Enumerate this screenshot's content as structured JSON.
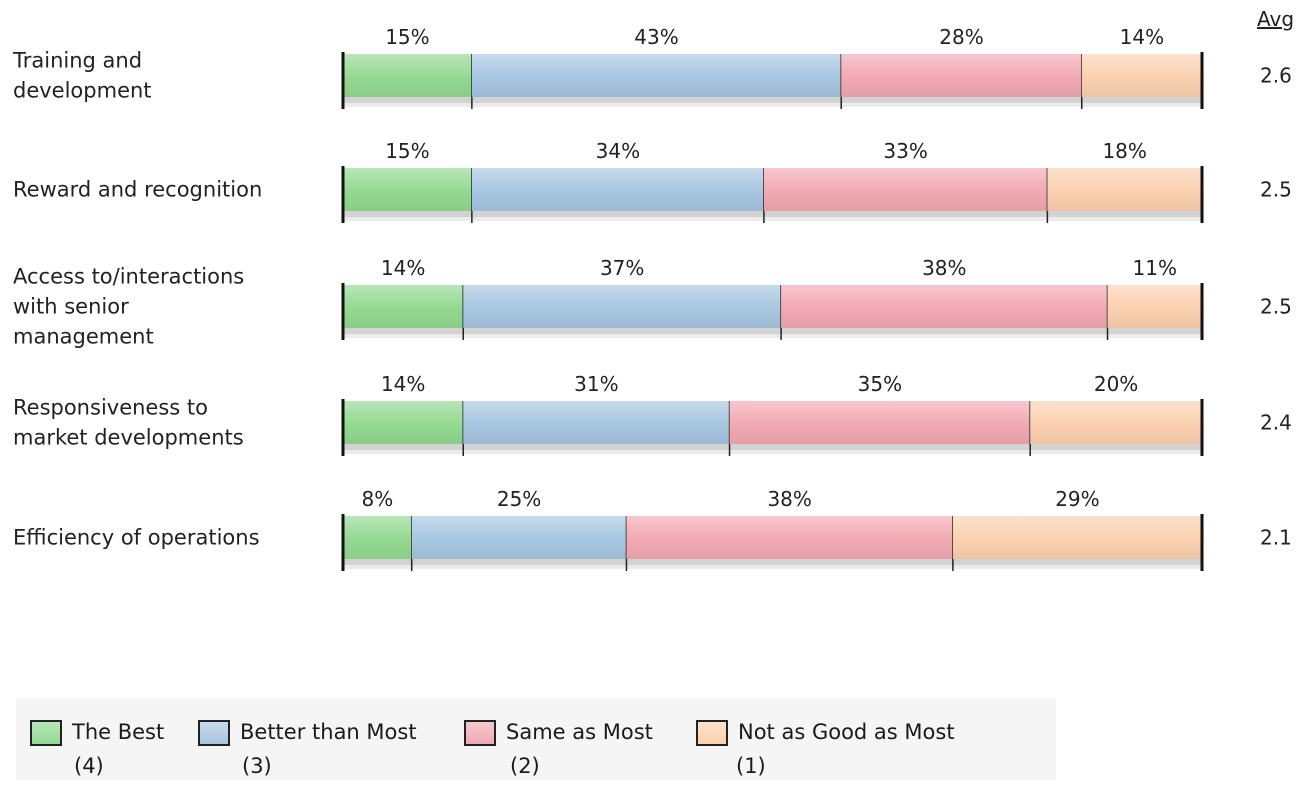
{
  "chart_data": {
    "type": "bar",
    "stacked": true,
    "orientation": "horizontal",
    "percent_suffix": "%",
    "avg_header": "Avg",
    "categories": [
      [
        "Training and",
        "development"
      ],
      [
        "Reward and recognition"
      ],
      [
        "Access to/interactions",
        "with senior",
        "management"
      ],
      [
        "Responsiveness to",
        "market developments"
      ],
      [
        "Efficiency of operations"
      ]
    ],
    "series": [
      {
        "name": "The Best",
        "score": "(4)",
        "color": "#93d991",
        "values": [
          15,
          15,
          14,
          14,
          8
        ]
      },
      {
        "name": "Better than Most",
        "score": "(3)",
        "color": "#a7c6e0",
        "values": [
          43,
          34,
          37,
          31,
          25
        ]
      },
      {
        "name": "Same as Most",
        "score": "(2)",
        "color": "#f2a9b3",
        "values": [
          28,
          33,
          38,
          35,
          38
        ]
      },
      {
        "name": "Not as Good as Most",
        "score": "(1)",
        "color": "#fbd1b0",
        "values": [
          14,
          18,
          11,
          20,
          29
        ]
      }
    ],
    "averages": [
      "2.6",
      "2.5",
      "2.5",
      "2.4",
      "2.1"
    ],
    "xlim": [
      0,
      100
    ],
    "legend": "bottom"
  }
}
